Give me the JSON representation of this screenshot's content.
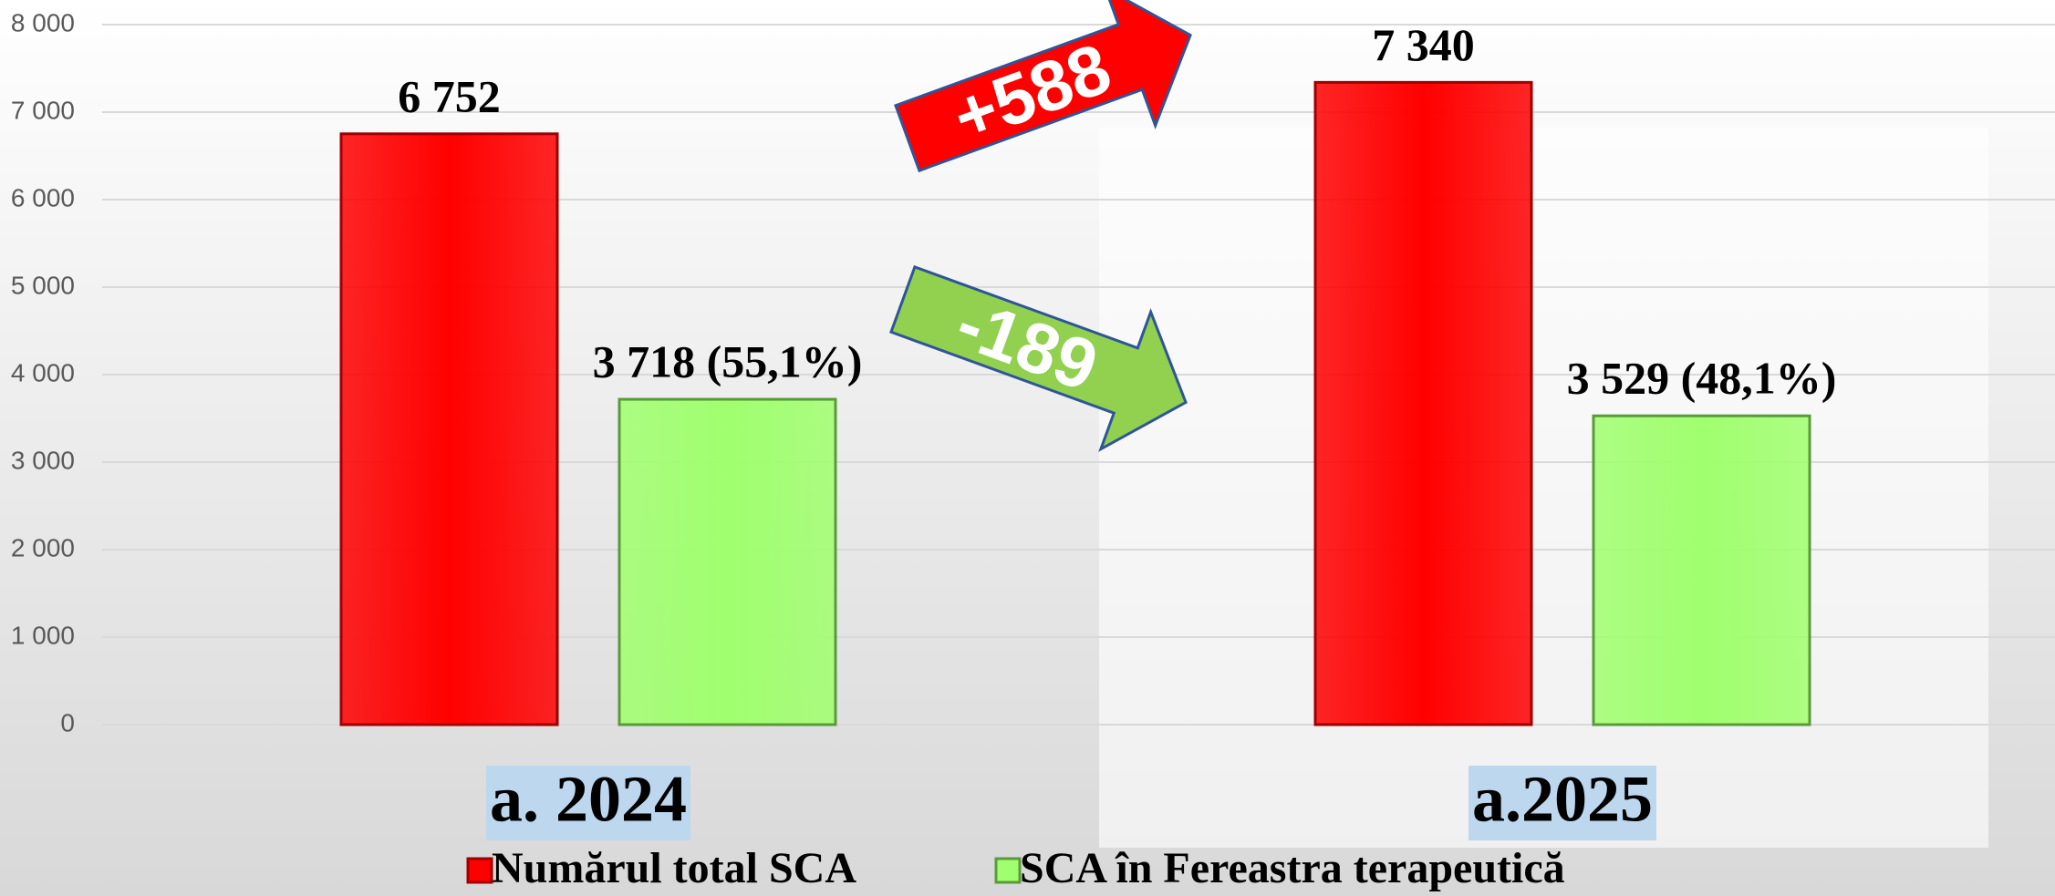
{
  "chart_data": {
    "type": "bar",
    "categories": [
      "a. 2024",
      "a.2025"
    ],
    "series": [
      {
        "name": "Numărul total SCA",
        "color": "#ff0000",
        "values": [
          6752,
          7340
        ],
        "value_labels": [
          "6 752",
          "7 340"
        ]
      },
      {
        "name": "SCA în Fereastra terapeutică",
        "color": "#a0ff6e",
        "values": [
          3718,
          3529
        ],
        "value_labels": [
          "3 718 (55,1%)",
          "3 529 (48,1%)"
        ]
      }
    ],
    "ylim": [
      0,
      8000
    ],
    "yticks": [
      0,
      {
        "value": 1000,
        "label": "1 000"
      },
      {
        "value": 2000,
        "label": "2 000"
      },
      {
        "value": 3000,
        "label": "3 000"
      },
      {
        "value": 4000,
        "label": "4 000"
      },
      {
        "value": 5000,
        "label": "5 000"
      },
      {
        "value": 6000,
        "label": "6 000"
      },
      {
        "value": 7000,
        "label": "7 000"
      },
      {
        "value": 8000,
        "label": "8 000"
      }
    ],
    "grid": true,
    "legend": "bottom",
    "annotations": [
      "+588",
      "-189"
    ]
  }
}
